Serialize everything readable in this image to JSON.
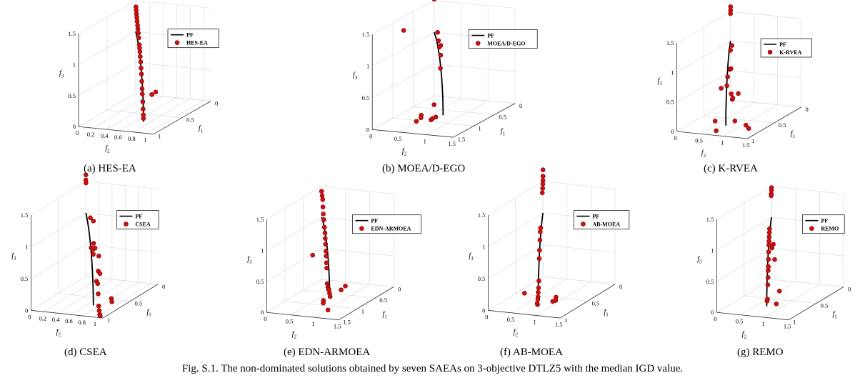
{
  "caption": "Fig. S.1. The non-dominated solutions obtained by seven SAEAs on 3-objective DTLZ5 with the median IGD value.",
  "axis_labels": {
    "f1": "f",
    "f1_sub": "1",
    "f2": "f",
    "f2_sub": "2",
    "f3": "f",
    "f3_sub": "3"
  },
  "colors": {
    "pf_line": "#000000",
    "points": "#cc1111",
    "point_edge": "#7a0000",
    "grid": "#dddddd",
    "axis": "#333333"
  },
  "pf_legend_label": "PF",
  "chart_data": [
    {
      "type": "scatter3d",
      "caption": "(a) HES-EA",
      "legend": [
        "PF",
        "HES-EA"
      ],
      "f1_ticks": [
        "0",
        "0.5",
        "1"
      ],
      "f1_range": [
        0,
        1
      ],
      "f2_ticks": [
        "0",
        "0.2",
        "0.4",
        "0.6",
        "0.8",
        "1"
      ],
      "f2_range": [
        0,
        1.1
      ],
      "f3_ticks": [
        "0",
        "0.5",
        "1",
        "1.5"
      ],
      "f3_range": [
        0,
        1.5
      ],
      "points": [
        [
          0.02,
          0.02,
          1.41
        ],
        [
          0.04,
          0.04,
          1.37
        ],
        [
          0.07,
          0.07,
          1.33
        ],
        [
          0.1,
          0.1,
          1.29
        ],
        [
          0.13,
          0.13,
          1.25
        ],
        [
          0.17,
          0.17,
          1.21
        ],
        [
          0.2,
          0.2,
          1.17
        ],
        [
          0.24,
          0.24,
          1.13
        ],
        [
          0.28,
          0.28,
          1.08
        ],
        [
          0.33,
          0.33,
          1.0
        ],
        [
          0.35,
          0.35,
          0.96
        ],
        [
          0.38,
          0.38,
          0.92
        ],
        [
          0.41,
          0.41,
          0.86
        ],
        [
          0.45,
          0.45,
          0.8
        ],
        [
          0.48,
          0.48,
          0.72
        ],
        [
          0.52,
          0.52,
          0.65
        ],
        [
          0.55,
          0.55,
          0.55
        ],
        [
          0.58,
          0.58,
          0.45
        ],
        [
          0.6,
          0.6,
          0.38
        ],
        [
          0.64,
          0.64,
          0.28
        ],
        [
          0.67,
          0.67,
          0.18
        ],
        [
          0.69,
          0.69,
          0.1
        ],
        [
          0.7,
          0.7,
          0.05
        ],
        [
          0.58,
          0.78,
          0.42
        ],
        [
          0.72,
          0.84,
          0.46
        ]
      ]
    },
    {
      "type": "scatter3d",
      "caption": "(b) MOEA/D-EGO",
      "legend": [
        "PF",
        "MOEA/D-EGO"
      ],
      "f1_ticks": [
        "0",
        "0.5",
        "1",
        "1.5"
      ],
      "f1_range": [
        0,
        1.5
      ],
      "f2_ticks": [
        "0",
        "0.5",
        "1",
        "1.5"
      ],
      "f2_range": [
        0,
        1.5
      ],
      "f3_ticks": [
        "0",
        "0.5",
        "1",
        "1.5"
      ],
      "f3_range": [
        0,
        1.5
      ],
      "points": [
        [
          0.0,
          0.0,
          1.62
        ],
        [
          0.01,
          0.01,
          1.55
        ],
        [
          0.02,
          0.02,
          1.53
        ],
        [
          0.28,
          0.28,
          1.12
        ],
        [
          0.35,
          0.35,
          1.02
        ],
        [
          0.42,
          0.42,
          0.95
        ],
        [
          0.52,
          0.52,
          1.02
        ],
        [
          0.5,
          0.5,
          0.65
        ],
        [
          0.65,
          0.62,
          0.92
        ],
        [
          0.9,
          0.45,
          0.05
        ],
        [
          1.0,
          0.52,
          0.05
        ],
        [
          1.15,
          0.55,
          0.05
        ],
        [
          1.18,
          0.9,
          0.35
        ],
        [
          1.28,
          0.92,
          0.15
        ],
        [
          1.35,
          1.0,
          0.2
        ],
        [
          1.4,
          1.1,
          0.25
        ],
        [
          1.0,
          0.2,
          1.4
        ]
      ]
    },
    {
      "type": "scatter3d",
      "caption": "(c) K-RVEA",
      "legend": [
        "PF",
        "K-RVEA"
      ],
      "f1_ticks": [
        "0",
        "0.5",
        "1"
      ],
      "f1_range": [
        0,
        1
      ],
      "f2_ticks": [
        "0",
        "0.5",
        "1",
        "1.5"
      ],
      "f2_range": [
        0,
        1.5
      ],
      "f3_ticks": [
        "0",
        "0.5",
        "1",
        "1.5"
      ],
      "f3_range": [
        0,
        1.5
      ],
      "points": [
        [
          0.0,
          0.0,
          1.58
        ],
        [
          0.0,
          0.0,
          1.52
        ],
        [
          0.01,
          0.01,
          1.47
        ],
        [
          0.15,
          0.2,
          1.02
        ],
        [
          0.22,
          0.25,
          0.98
        ],
        [
          0.45,
          0.5,
          0.8
        ],
        [
          0.3,
          0.35,
          0.72
        ],
        [
          0.58,
          0.6,
          0.75
        ],
        [
          0.55,
          0.55,
          0.58
        ],
        [
          0.7,
          0.6,
          0.62
        ],
        [
          0.6,
          0.7,
          0.48
        ],
        [
          0.65,
          0.78,
          0.42
        ],
        [
          0.5,
          0.62,
          0.35
        ],
        [
          0.25,
          0.45,
          0.28
        ],
        [
          0.9,
          0.7,
          0.18
        ],
        [
          0.95,
          0.78,
          0.05
        ],
        [
          0.72,
          1.15,
          0.05
        ],
        [
          0.8,
          1.3,
          0.05
        ],
        [
          0.62,
          0.8,
          0.04
        ]
      ]
    },
    {
      "type": "scatter3d",
      "caption": "(d) CSEA",
      "legend": [
        "PF",
        "CSEA"
      ],
      "f1_ticks": [
        "0",
        "0.5",
        "1"
      ],
      "f1_range": [
        0,
        1
      ],
      "f2_ticks": [
        "0",
        "0.2",
        "0.4",
        "0.6",
        "0.8",
        "1"
      ],
      "f2_range": [
        0,
        1.1
      ],
      "f3_ticks": [
        "0",
        "0.5",
        "1",
        "1.5"
      ],
      "f3_range": [
        0,
        1.5
      ],
      "points": [
        [
          0.0,
          0.0,
          1.6
        ],
        [
          0.0,
          0.0,
          1.52
        ],
        [
          0.01,
          0.01,
          1.48
        ],
        [
          0.3,
          0.32,
          1.12
        ],
        [
          0.34,
          0.4,
          1.1
        ],
        [
          0.55,
          0.58,
          0.88
        ],
        [
          0.62,
          0.6,
          0.85
        ],
        [
          0.66,
          0.66,
          0.85
        ],
        [
          0.7,
          0.7,
          0.8
        ],
        [
          0.6,
          0.7,
          0.72
        ],
        [
          0.25,
          0.35,
          0.62
        ],
        [
          0.55,
          0.65,
          0.45
        ],
        [
          0.7,
          0.75,
          0.38
        ],
        [
          0.4,
          0.55,
          0.32
        ],
        [
          0.5,
          0.6,
          0.22
        ],
        [
          0.85,
          0.9,
          0.28
        ],
        [
          0.9,
          0.95,
          0.12
        ],
        [
          0.95,
          1.0,
          0.08
        ],
        [
          1.0,
          1.05,
          0.05
        ],
        [
          1.05,
          1.1,
          0.06
        ],
        [
          0.55,
          0.85,
          0.04
        ],
        [
          0.6,
          0.9,
          0.02
        ]
      ]
    },
    {
      "type": "scatter3d",
      "caption": "(e) EDN-ARMOEA",
      "legend": [
        "PF",
        "EDN-ARMOEA"
      ],
      "f1_ticks": [
        "0",
        "0.5",
        "1",
        "1.5"
      ],
      "f1_range": [
        0,
        1.5
      ],
      "f2_ticks": [
        "0",
        "0.5",
        "1",
        "1.5"
      ],
      "f2_range": [
        0,
        1.5
      ],
      "f3_ticks": [
        "0",
        "0.5",
        "1",
        "1.5"
      ],
      "f3_range": [
        0,
        1.5
      ],
      "points": [
        [
          0.0,
          0.0,
          1.42
        ],
        [
          0.05,
          0.05,
          1.37
        ],
        [
          0.1,
          0.1,
          1.33
        ],
        [
          0.12,
          0.12,
          1.22
        ],
        [
          0.15,
          0.15,
          1.12
        ],
        [
          0.2,
          0.2,
          1.05
        ],
        [
          0.25,
          0.25,
          0.95
        ],
        [
          0.3,
          0.3,
          0.88
        ],
        [
          0.32,
          0.32,
          0.8
        ],
        [
          0.35,
          0.35,
          0.72
        ],
        [
          0.38,
          0.38,
          0.62
        ],
        [
          0.4,
          0.4,
          0.55
        ],
        [
          0.42,
          0.42,
          0.45
        ],
        [
          0.45,
          0.45,
          0.38
        ],
        [
          0.5,
          0.5,
          0.15
        ],
        [
          0.55,
          0.55,
          0.12
        ],
        [
          0.6,
          0.6,
          0.1
        ],
        [
          0.65,
          0.65,
          0.12
        ],
        [
          0.7,
          0.7,
          0.08
        ],
        [
          0.75,
          0.75,
          0.05
        ],
        [
          0.45,
          0.75,
          0.05
        ],
        [
          0.4,
          0.8,
          0.1
        ],
        [
          1.0,
          0.8,
          0.08
        ],
        [
          1.2,
          0.95,
          0.12
        ],
        [
          1.4,
          1.2,
          0.1
        ],
        [
          0.9,
          0.5,
          0.75
        ]
      ]
    },
    {
      "type": "scatter3d",
      "caption": "(f) AB-MOEA",
      "legend": [
        "PF",
        "AB-MOEA"
      ],
      "f1_ticks": [
        "0",
        "0.5",
        "1"
      ],
      "f1_range": [
        0,
        1
      ],
      "f2_ticks": [
        "0",
        "0.5",
        "1",
        "1.5"
      ],
      "f2_range": [
        0,
        1.5
      ],
      "f3_ticks": [
        "0",
        "0.5",
        "1",
        "1.5"
      ],
      "f3_range": [
        0,
        1.5
      ],
      "points": [
        [
          0.0,
          0.0,
          1.68
        ],
        [
          0.0,
          0.0,
          1.58
        ],
        [
          0.01,
          0.01,
          1.52
        ],
        [
          0.02,
          0.02,
          1.47
        ],
        [
          0.05,
          0.05,
          1.42
        ],
        [
          0.1,
          0.1,
          1.38
        ],
        [
          0.35,
          0.35,
          0.98
        ],
        [
          0.4,
          0.4,
          0.95
        ],
        [
          0.45,
          0.45,
          0.85
        ],
        [
          0.5,
          0.5,
          0.72
        ],
        [
          0.55,
          0.55,
          0.62
        ],
        [
          0.6,
          0.6,
          0.3
        ],
        [
          0.65,
          0.65,
          0.22
        ],
        [
          0.7,
          0.7,
          0.18
        ],
        [
          0.72,
          0.72,
          0.12
        ],
        [
          0.75,
          0.75,
          0.1
        ],
        [
          0.8,
          0.8,
          0.05
        ],
        [
          0.85,
          0.85,
          0.1
        ],
        [
          0.55,
          0.9,
          0.04
        ],
        [
          0.6,
          0.95,
          0.02
        ],
        [
          0.95,
          0.7,
          0.3
        ],
        [
          0.68,
          0.98,
          0.05
        ]
      ]
    },
    {
      "type": "scatter3d",
      "caption": "(g) REMO",
      "legend": [
        "PF",
        "REMO"
      ],
      "f1_ticks": [
        "0",
        "0.5",
        "1"
      ],
      "f1_range": [
        0,
        1
      ],
      "f2_ticks": [
        "0",
        "0.5",
        "1",
        "1.5"
      ],
      "f2_range": [
        0,
        1.5
      ],
      "f3_ticks": [
        "0",
        "0.5",
        "1",
        "1.5"
      ],
      "f3_range": [
        0,
        1.5
      ],
      "points": [
        [
          0.0,
          0.0,
          1.48
        ],
        [
          0.02,
          0.02,
          1.45
        ],
        [
          0.04,
          0.04,
          1.4
        ],
        [
          0.05,
          0.05,
          1.38
        ],
        [
          0.3,
          0.3,
          1.0
        ],
        [
          0.32,
          0.32,
          0.95
        ],
        [
          0.35,
          0.35,
          0.9
        ],
        [
          0.38,
          0.38,
          0.85
        ],
        [
          0.4,
          0.4,
          0.8
        ],
        [
          0.42,
          0.42,
          0.7
        ],
        [
          0.45,
          0.45,
          0.6
        ],
        [
          0.48,
          0.48,
          0.5
        ],
        [
          0.5,
          0.5,
          0.45
        ],
        [
          0.52,
          0.52,
          0.35
        ],
        [
          0.55,
          0.55,
          0.25
        ],
        [
          0.6,
          0.6,
          0.05
        ],
        [
          0.65,
          0.65,
          0.05
        ],
        [
          0.6,
          0.75,
          0.7
        ],
        [
          0.6,
          0.85,
          0.2
        ],
        [
          0.7,
          0.9,
          0.05
        ],
        [
          0.45,
          0.55,
          0.85
        ],
        [
          0.5,
          0.58,
          0.82
        ]
      ]
    }
  ]
}
